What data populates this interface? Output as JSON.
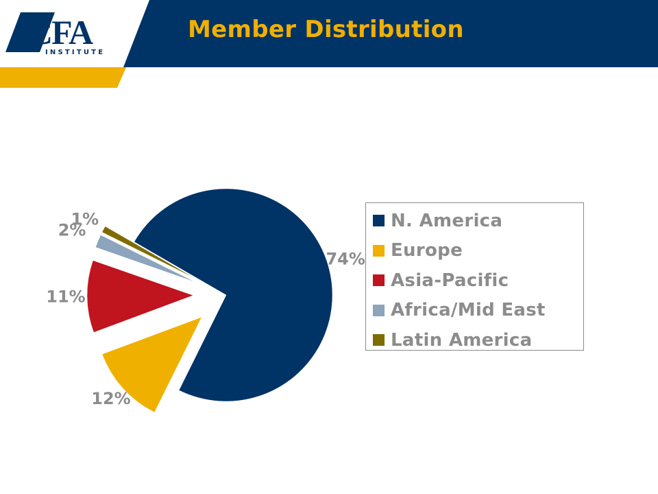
{
  "slide": {
    "title": "Member Distribution",
    "logo_text": "CFA",
    "logo_subtext": "INSTITUTE"
  },
  "colors": {
    "header_blue": "#003366",
    "gold": "#f0b000",
    "title_gold": "#f0b000",
    "label_gray": "#8c8c8c"
  },
  "chart_data": {
    "type": "pie",
    "title": "",
    "categories": [
      "N. America",
      "Europe",
      "Asia-Pacific",
      "Africa/Mid East",
      "Latin America"
    ],
    "values": [
      74,
      12,
      11,
      2,
      1
    ],
    "value_labels": [
      "74%",
      "12%",
      "11%",
      "2%",
      "1%"
    ],
    "unit": "%",
    "colors": [
      "#003366",
      "#f0b000",
      "#c0141e",
      "#8ca5bc",
      "#7f6c00"
    ],
    "exploded": true,
    "legend_position": "right"
  }
}
